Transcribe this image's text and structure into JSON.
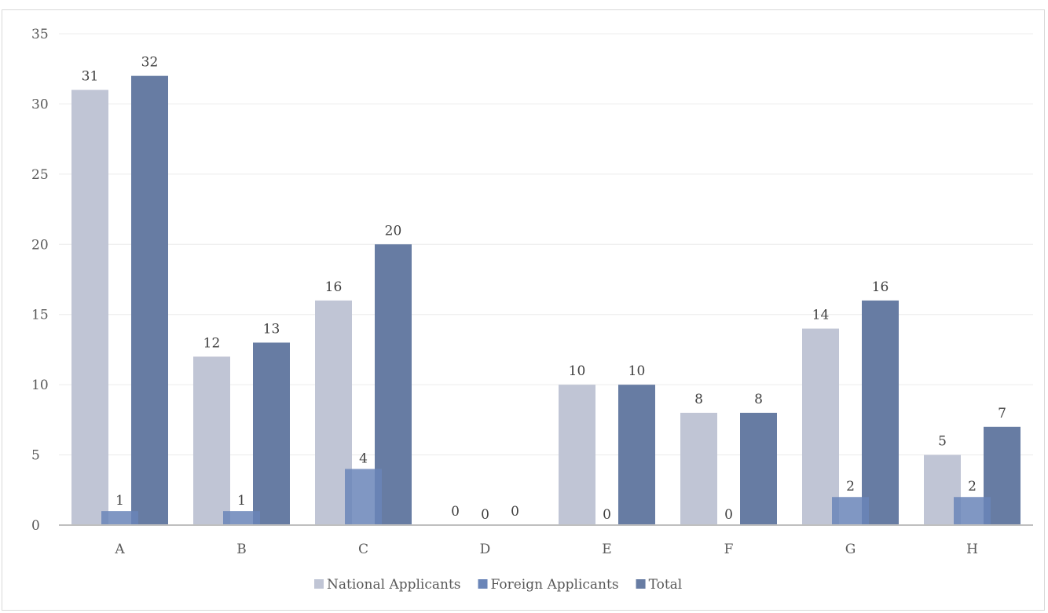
{
  "chart_data": {
    "type": "bar",
    "categories": [
      "A",
      "B",
      "C",
      "D",
      "E",
      "F",
      "G",
      "H"
    ],
    "series": [
      {
        "name": "National Applicants",
        "values": [
          31,
          12,
          16,
          0,
          10,
          8,
          14,
          5
        ],
        "color": "#c0c5d5"
      },
      {
        "name": "Foreign Applicants",
        "values": [
          1,
          1,
          4,
          0,
          0,
          0,
          2,
          2
        ],
        "color": "#6a85b8"
      },
      {
        "name": "Total",
        "values": [
          32,
          13,
          20,
          0,
          10,
          8,
          16,
          7
        ],
        "color": "#677ca3"
      }
    ],
    "ylim": [
      0,
      35
    ],
    "yticks": [
      "0",
      "5",
      "10",
      "15",
      "20",
      "25",
      "30",
      "35"
    ],
    "grid": true,
    "legend_position": "bottom",
    "axis_color": "#bfbfbf",
    "grid_color": "#ececec"
  }
}
